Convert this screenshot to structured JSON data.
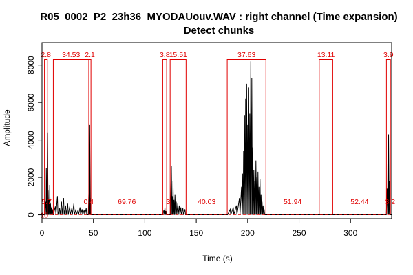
{
  "title_line1": "R05_0002_P2_23h36_MYODAUouv.WAV : right channel (Time expansion)",
  "title_line2": "Detect chunks",
  "chart_data": {
    "type": "line",
    "title": "R05_0002_P2_23h36_MYODAUouv.WAV : right channel (Time expansion)",
    "subtitle": "Detect chunks",
    "xlabel": "Time (s)",
    "ylabel": "Amplitude",
    "xlim": [
      0,
      340
    ],
    "ylim": [
      -200,
      9200
    ],
    "x_ticks": [
      0,
      50,
      100,
      150,
      200,
      250,
      300
    ],
    "y_ticks": [
      0,
      2000,
      4000,
      6000,
      8000
    ],
    "grid": false,
    "legend": "none",
    "colors": {
      "signal": "#000000",
      "chunks": "#e00000",
      "threshold": "#e00000",
      "axis": "#000000"
    },
    "threshold": {
      "value": 10,
      "label": "10"
    },
    "chunk_high": 8300,
    "chunks": [
      {
        "start": 2.4,
        "end": 5.2,
        "label": "2.8"
      },
      {
        "start": 11.0,
        "end": 45.5,
        "label": "34.53"
      },
      {
        "start": 45.5,
        "end": 47.6,
        "label": "2.1"
      },
      {
        "start": 117.4,
        "end": 121.2,
        "label": "3.8"
      },
      {
        "start": 124.6,
        "end": 140.1,
        "label": "15.51"
      },
      {
        "start": 180.1,
        "end": 217.7,
        "label": "37.63"
      },
      {
        "start": 269.6,
        "end": 282.7,
        "label": "13.11"
      },
      {
        "start": 334.9,
        "end": 338.8,
        "label": "3.9"
      }
    ],
    "gaps": [
      {
        "x": 4.5,
        "label": "5.7"
      },
      {
        "x": 45.4,
        "label": "0.4"
      },
      {
        "x": 82.5,
        "label": "69.76"
      },
      {
        "x": 122.8,
        "label": "3"
      },
      {
        "x": 160.1,
        "label": "40.03"
      },
      {
        "x": 243.7,
        "label": "51.94"
      },
      {
        "x": 308.8,
        "label": "52.44"
      },
      {
        "x": 338.5,
        "label": "3.2"
      }
    ],
    "signal_bursts": [
      {
        "start": 2.5,
        "end": 11.0,
        "peaks": [
          [
            3.5,
            700
          ],
          [
            4.2,
            2500
          ],
          [
            4.8,
            1100
          ],
          [
            5.4,
            4400
          ],
          [
            6.0,
            1300
          ],
          [
            6.8,
            800
          ],
          [
            7.5,
            1600
          ],
          [
            8.3,
            600
          ],
          [
            9.2,
            400
          ],
          [
            10.2,
            300
          ]
        ]
      },
      {
        "start": 11.0,
        "end": 45.0,
        "peaks": [
          [
            13,
            450
          ],
          [
            15,
            1000
          ],
          [
            17,
            350
          ],
          [
            19,
            700
          ],
          [
            21,
            900
          ],
          [
            23,
            500
          ],
          [
            25,
            600
          ],
          [
            27,
            450
          ],
          [
            29,
            350
          ],
          [
            31,
            600
          ],
          [
            33,
            300
          ],
          [
            35,
            250
          ],
          [
            37,
            400
          ],
          [
            39,
            300
          ],
          [
            41,
            250
          ],
          [
            43,
            350
          ]
        ]
      },
      {
        "start": 45.0,
        "end": 48.0,
        "peaks": [
          [
            45.8,
            1800
          ],
          [
            46.4,
            4800
          ],
          [
            47.0,
            900
          ]
        ]
      },
      {
        "start": 117.5,
        "end": 121.0,
        "peaks": [
          [
            118.5,
            250
          ],
          [
            119.5,
            400
          ],
          [
            120.5,
            200
          ]
        ]
      },
      {
        "start": 124.8,
        "end": 140.0,
        "peaks": [
          [
            125.8,
            2600
          ],
          [
            126.5,
            1000
          ],
          [
            127.4,
            1800
          ],
          [
            128.3,
            800
          ],
          [
            129.3,
            1100
          ],
          [
            130.5,
            700
          ],
          [
            132.0,
            600
          ],
          [
            133.5,
            500
          ],
          [
            135.0,
            400
          ],
          [
            137.0,
            350
          ],
          [
            139.0,
            300
          ]
        ]
      },
      {
        "start": 180.5,
        "end": 217.0,
        "peaks": [
          [
            183,
            300
          ],
          [
            186,
            400
          ],
          [
            189,
            500
          ],
          [
            192,
            900
          ],
          [
            194,
            1500
          ],
          [
            195,
            2200
          ],
          [
            196,
            3400
          ],
          [
            197,
            5300
          ],
          [
            198,
            6200
          ],
          [
            199,
            7000
          ],
          [
            200,
            4800
          ],
          [
            201,
            6800
          ],
          [
            202,
            5400
          ],
          [
            203,
            8200
          ],
          [
            204,
            7300
          ],
          [
            205,
            3600
          ],
          [
            206,
            2400
          ],
          [
            207,
            1800
          ],
          [
            208,
            2900
          ],
          [
            209,
            2000
          ],
          [
            210,
            2300
          ],
          [
            211,
            1500
          ],
          [
            212,
            1900
          ],
          [
            213,
            1100
          ],
          [
            214,
            700
          ],
          [
            215,
            500
          ],
          [
            216,
            300
          ]
        ]
      },
      {
        "start": 334.8,
        "end": 338.5,
        "peaks": [
          [
            335.5,
            1400
          ],
          [
            336.3,
            2700
          ],
          [
            337.0,
            4300
          ],
          [
            337.8,
            1800
          ]
        ]
      }
    ]
  }
}
